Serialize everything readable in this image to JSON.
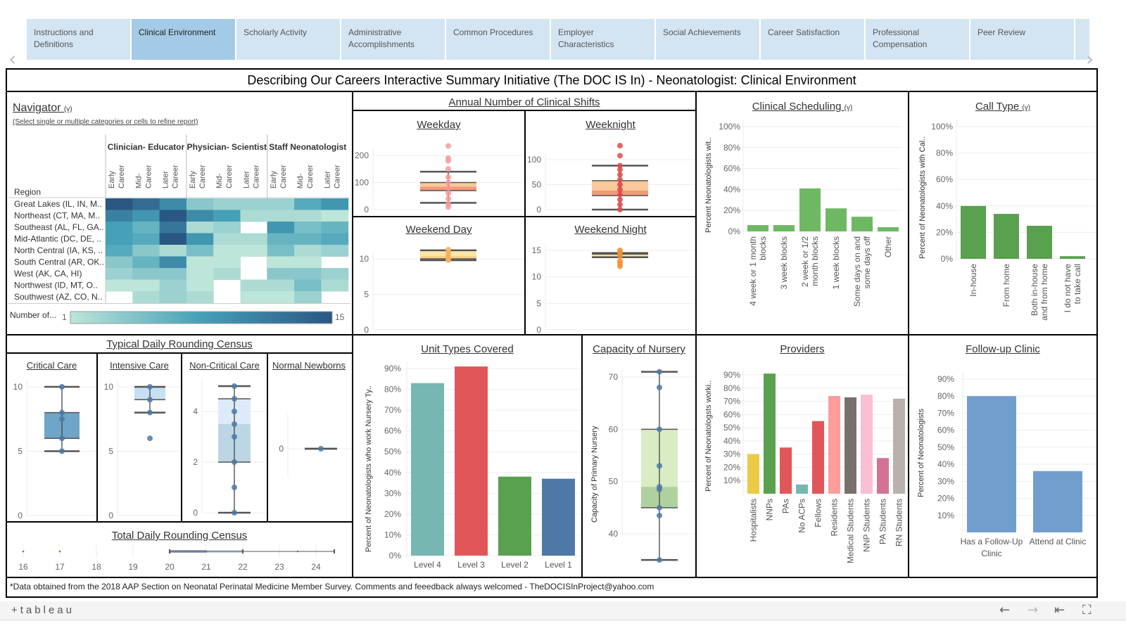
{
  "tabs": [
    "Instructions and Definitions",
    "Clinical Environment",
    "Scholarly Activity",
    "Administrative Accomplishments",
    "Common Procedures",
    "Employer Characteristics",
    "Social Achievements",
    "Career Satisfaction",
    "Professional Compensation",
    "Peer Review"
  ],
  "selected_tab": "Clinical Environment",
  "title": "Describing Our Careers Interactive Summary Initiative (The DOC IS In) - Neonatologist: Clinical Environment",
  "navigator": {
    "title": "Navigator",
    "toggle": "(v)",
    "subtitle": "(Select single or multiple categories or cells to refine report)",
    "row_header": "Region",
    "groups": [
      "Clinician- Educator",
      "Physician- Scientist",
      "Staff Neonatologist"
    ],
    "subcolumns": [
      "Early Career",
      "Mid- Career",
      "Later Career"
    ],
    "rows": [
      "Great Lakes (IL, IN, M..",
      "Northeast (CT, MA, M..",
      "Southeast (AL, FL, GA..",
      "Mid-Atlantic (DC, DE, ..",
      "North Central (IA, KS, ..",
      "South Central (AR, OK..",
      "West (AK, CA, HI)",
      "Northwest (ID, MT, O..",
      "Southwest (AZ, CO, N.."
    ],
    "values": [
      [
        15,
        13,
        10,
        4,
        3,
        3,
        3,
        7,
        9
      ],
      [
        11,
        9,
        15,
        10,
        8,
        2,
        2,
        2,
        1
      ],
      [
        8,
        6,
        12,
        2,
        3,
        null,
        9,
        5,
        6
      ],
      [
        8,
        7,
        15,
        9,
        2,
        2,
        6,
        6,
        7
      ],
      [
        7,
        4,
        2,
        5,
        1,
        1,
        5,
        2,
        3
      ],
      [
        4,
        6,
        10,
        1,
        1,
        null,
        1,
        1,
        null
      ],
      [
        3,
        4,
        4,
        1,
        2,
        null,
        4,
        4,
        3
      ],
      [
        1,
        1,
        3,
        1,
        null,
        2,
        2,
        5,
        2
      ],
      [
        null,
        2,
        3,
        2,
        null,
        1,
        1,
        3,
        null
      ]
    ],
    "legend_label": "Number of...",
    "legend_min": "1",
    "legend_max": "15",
    "colors": {
      "low": "#bde5d9",
      "mid": "#45a0b8",
      "high": "#2a5783"
    }
  },
  "shifts": {
    "title": "Annual Number of Clinical Shifts",
    "weekday": {
      "title": "Weekday",
      "ticks": [
        0,
        100,
        200
      ],
      "low": 25,
      "q1": 70,
      "median": 85,
      "q3": 100,
      "high": 140,
      "points": [
        10,
        20,
        40,
        60,
        80,
        100,
        120,
        150,
        180,
        190,
        235
      ],
      "colors": {
        "light": "#fcc999",
        "dark": "#f09a78",
        "point": "#f99a9a"
      }
    },
    "weeknight": {
      "title": "Weeknight",
      "ticks": [
        0,
        50,
        100
      ],
      "low": 0,
      "q1": 28,
      "median": 38,
      "q3": 58,
      "high": 88,
      "points": [
        0,
        10,
        20,
        30,
        40,
        50,
        60,
        70,
        80,
        88,
        108,
        128
      ],
      "colors": {
        "light": "#fcc999",
        "dark": "#f09a78",
        "point": "#e04a4a"
      }
    },
    "weekend_day": {
      "title": "Weekend Day",
      "ticks": [
        0,
        5,
        10
      ],
      "low": 9.8,
      "q1": 10,
      "median": 10.4,
      "q3": 11.2,
      "high": 11.2,
      "points": [
        9.8,
        10.1,
        10.5,
        11,
        11.3
      ],
      "colors": {
        "light": "#fbe5a6",
        "dark": "#f8d28c",
        "point": "#f7b15e"
      }
    },
    "weekend_night": {
      "title": "Weekend Night",
      "ticks": [
        0,
        5,
        10,
        15
      ],
      "low": 13.7,
      "q1": 13.7,
      "median": 14,
      "q3": 14.3,
      "high": 14.5,
      "points": [
        12,
        12.5,
        13,
        14,
        14.5,
        15
      ],
      "colors": {
        "light": "#fbe5a6",
        "dark": "#f8d28c",
        "point": "#f28e2b"
      }
    }
  },
  "clinical_scheduling": {
    "title": "Clinical Scheduling",
    "toggle": "(v)",
    "ylabel": "Percent Neonatologists wit..",
    "categories": [
      "4 week or 1 month blocks",
      "3 week blocks",
      "2 week or 1/2 month blocks",
      "1 week blocks",
      "Some days on and some days off",
      "Other"
    ],
    "values": [
      6,
      6,
      41,
      22,
      14,
      4
    ],
    "yticks": [
      0,
      20,
      40,
      60,
      80,
      100
    ],
    "color": "#6fb863"
  },
  "call_type": {
    "title": "Call Type",
    "toggle": "(v)",
    "ylabel": "Percent of Neonatologists with Cal..",
    "categories": [
      "In-house",
      "From home",
      "Both in-house and from home",
      "I do not have to take call"
    ],
    "values": [
      40,
      34,
      25,
      2
    ],
    "yticks": [
      0,
      20,
      40,
      60,
      80,
      100
    ],
    "color": "#59a14f"
  },
  "census": {
    "title": "Typical Daily Rounding Census",
    "critical": {
      "title": "Critical Care",
      "ticks": [
        0,
        5,
        10
      ],
      "low": 5,
      "q1": 6,
      "median": 8,
      "q3": 8,
      "high": 10,
      "points": [
        5,
        6,
        7.5,
        8,
        10
      ],
      "colors": {
        "light": "#6fa5c8",
        "dark": "#6fa5c8",
        "point": "#4e79a7"
      }
    },
    "intensive": {
      "title": "Intensive Care",
      "ticks": [
        0,
        5,
        10
      ],
      "low": 8,
      "q1": 9,
      "median": 9,
      "q3": 10,
      "high": 10,
      "points": [
        6,
        8,
        9,
        10
      ],
      "colors": {
        "light": "#c6dff2",
        "dark": "#c6dff2",
        "point": "#4e79a7"
      }
    },
    "noncritical": {
      "title": "Non-Critical Care",
      "ticks": [
        0,
        2,
        4
      ],
      "low": 0,
      "q1": 2,
      "median": 3.5,
      "q3": 4.5,
      "high": 5,
      "points": [
        0,
        1,
        2,
        3,
        3.5,
        4,
        4.5,
        5
      ],
      "colors": {
        "light": "#dcebf7",
        "dark": "#bcd6e5",
        "point": "#4e79a7"
      }
    },
    "newborns": {
      "title": "Normal Newborns",
      "ticks": [
        0
      ],
      "low": 0,
      "q1": 0,
      "median": 0,
      "q3": 0,
      "high": 0,
      "points": [
        0
      ],
      "colors": {
        "light": "#c6dff2",
        "dark": "#c6dff2",
        "point": "#4e79a7"
      }
    }
  },
  "total_census": {
    "title": "Total Daily Rounding Census",
    "ticks": [
      16,
      17,
      18,
      19,
      20,
      21,
      22,
      23,
      24
    ],
    "low": 20,
    "q1": 20,
    "median": 21,
    "q3": 22,
    "high": 24.5,
    "points": [
      16,
      17,
      21,
      23.5
    ],
    "colors": {
      "light": "#cdd8f0",
      "dark": "#9aa4bf",
      "point": "#4e79a7"
    }
  },
  "unit_types": {
    "title": "Unit Types Covered",
    "ylabel": "Percent of Neonatologists who work Nursery Ty..",
    "categories": [
      "Level 4",
      "Level 3",
      "Level 2",
      "Level 1"
    ],
    "values": [
      83,
      91,
      38,
      37
    ],
    "yticks": [
      0,
      10,
      20,
      30,
      40,
      50,
      60,
      70,
      80,
      90
    ],
    "colors": [
      "#76b7b2",
      "#e15759",
      "#59a14f",
      "#4e79a7"
    ]
  },
  "capacity": {
    "title": "Capacity of Nursery",
    "ylabel": "Capacity of Primary Nursery",
    "ticks": [
      40,
      50,
      60,
      70
    ],
    "low": 35,
    "q1": 45,
    "median": 49,
    "q3": 60,
    "high": 71,
    "points": [
      35,
      43.5,
      45,
      48.5,
      49,
      53,
      60,
      68,
      71
    ],
    "colors": {
      "light": "#d9ecc4",
      "dark": "#afd19f",
      "point": "#4e79a7"
    }
  },
  "providers": {
    "title": "Providers",
    "ylabel": "Percent of Neonatologsts worki..",
    "categories": [
      "Hospitalists",
      "NNPs",
      "PAs",
      "No ACPs",
      "Fellows",
      "Residents",
      "Medical Students",
      "NNP Students",
      "PA Students",
      "RN Students"
    ],
    "values": [
      30,
      91,
      35,
      7,
      55,
      74,
      73,
      75,
      27,
      72
    ],
    "yticks": [
      10,
      20,
      30,
      40,
      50,
      60,
      70,
      80,
      90
    ],
    "colors": [
      "#edc948",
      "#59a14f",
      "#e15759",
      "#76b7b2",
      "#e15759",
      "#ff9d9a",
      "#79706e",
      "#fabfd2",
      "#d37295",
      "#bab0ac"
    ]
  },
  "followup": {
    "title": "Follow-up Clinic",
    "ylabel": "Percent of Neonatologists",
    "categories": [
      "Has a Follow-Up Clinic",
      "Attend at Clinic"
    ],
    "values": [
      80,
      36
    ],
    "yticks": [
      10,
      20,
      30,
      40,
      50,
      60,
      70,
      80,
      90
    ],
    "color": "#729ece"
  },
  "footer": "*Data obtained from the 2018 AAP Section on Neonatal Perinatal Medicine Member Survey.  Comments and feeedback always welcomed - TheDOCISInProject@yahoo.com",
  "toolbar": {
    "logo": "+tableau",
    "icons": [
      "undo-icon",
      "redo-icon",
      "revert-icon",
      "fullscreen-icon"
    ]
  }
}
